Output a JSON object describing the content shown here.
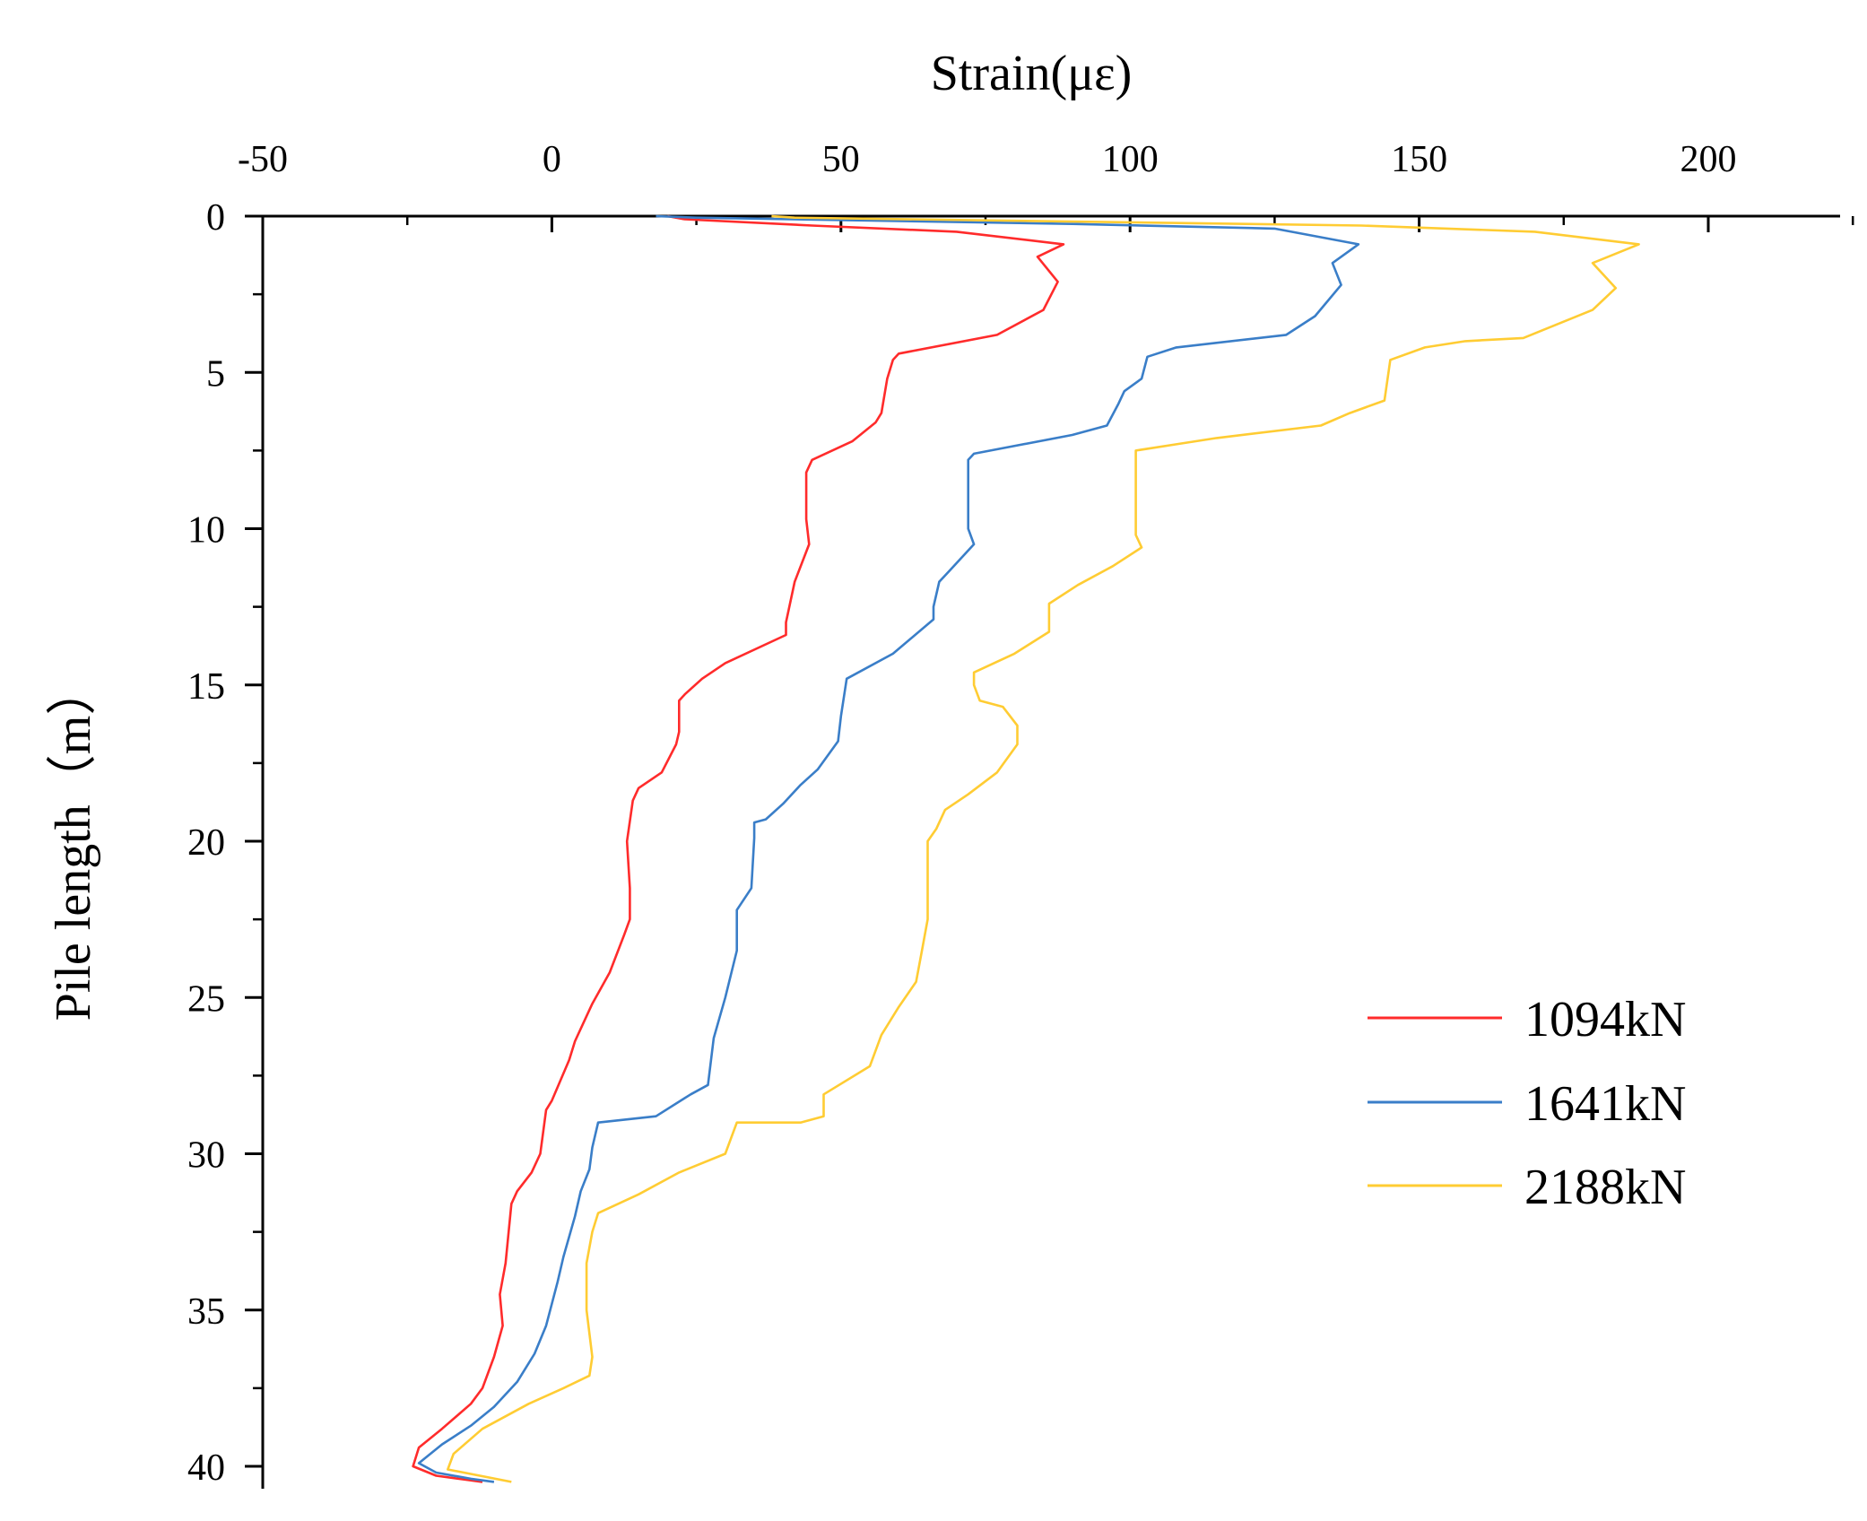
{
  "chart_data": {
    "type": "line",
    "title": "",
    "xlabel": "Strain(με)",
    "ylabel": "Pile length（m）",
    "xlim": [
      -50,
      225
    ],
    "ylim": [
      0,
      40.5
    ],
    "x_ticks": [
      -50,
      0,
      50,
      100,
      150,
      200
    ],
    "y_ticks": [
      0,
      5,
      10,
      15,
      20,
      25,
      30,
      35,
      40
    ],
    "x_axis_position": "top",
    "y_axis_inverted": true,
    "legend": "bottom-right",
    "series": [
      {
        "name": "1094kN",
        "color": "#ff2b2b",
        "points": [
          [
            20,
            0
          ],
          [
            23,
            0.1
          ],
          [
            45,
            0.3
          ],
          [
            70,
            0.5
          ],
          [
            88.5,
            0.9
          ],
          [
            84,
            1.3
          ],
          [
            87.5,
            2.1
          ],
          [
            85,
            3.0
          ],
          [
            77,
            3.8
          ],
          [
            60,
            4.4
          ],
          [
            59,
            4.6
          ],
          [
            58,
            5.2
          ],
          [
            57,
            6.3
          ],
          [
            56,
            6.6
          ],
          [
            52,
            7.2
          ],
          [
            45,
            7.8
          ],
          [
            44,
            8.2
          ],
          [
            44,
            9.7
          ],
          [
            44.5,
            10.5
          ],
          [
            42,
            11.7
          ],
          [
            40.5,
            13.0
          ],
          [
            40.5,
            13.4
          ],
          [
            30,
            14.3
          ],
          [
            26,
            14.8
          ],
          [
            23,
            15.3
          ],
          [
            22,
            15.5
          ],
          [
            22,
            16.5
          ],
          [
            21.5,
            16.9
          ],
          [
            19,
            17.8
          ],
          [
            15,
            18.3
          ],
          [
            14,
            18.7
          ],
          [
            13,
            20.0
          ],
          [
            13.5,
            21.5
          ],
          [
            13.5,
            22.5
          ],
          [
            12.5,
            23.0
          ],
          [
            10,
            24.2
          ],
          [
            7,
            25.2
          ],
          [
            4,
            26.4
          ],
          [
            3,
            27.0
          ],
          [
            0,
            28.3
          ],
          [
            -1,
            28.6
          ],
          [
            -2,
            30.0
          ],
          [
            -3.5,
            30.6
          ],
          [
            -6,
            31.2
          ],
          [
            -7,
            31.6
          ],
          [
            -8,
            33.5
          ],
          [
            -9,
            34.5
          ],
          [
            -8.5,
            35.5
          ],
          [
            -10,
            36.5
          ],
          [
            -12,
            37.5
          ],
          [
            -14,
            38.0
          ],
          [
            -19,
            38.8
          ],
          [
            -23,
            39.4
          ],
          [
            -24,
            40.0
          ],
          [
            -20,
            40.3
          ],
          [
            -12,
            40.5
          ]
        ]
      },
      {
        "name": "1641kN",
        "color": "#3a7ec8",
        "points": [
          [
            18,
            0
          ],
          [
            25,
            0.05
          ],
          [
            90,
            0.25
          ],
          [
            125,
            0.4
          ],
          [
            139.5,
            0.9
          ],
          [
            135,
            1.5
          ],
          [
            136.5,
            2.2
          ],
          [
            132,
            3.2
          ],
          [
            127,
            3.8
          ],
          [
            108,
            4.2
          ],
          [
            103,
            4.5
          ],
          [
            102,
            5.2
          ],
          [
            99,
            5.6
          ],
          [
            98,
            6.0
          ],
          [
            96,
            6.7
          ],
          [
            90,
            7.0
          ],
          [
            73,
            7.6
          ],
          [
            72,
            7.8
          ],
          [
            72,
            10.0
          ],
          [
            73,
            10.5
          ],
          [
            68,
            11.5
          ],
          [
            67,
            11.7
          ],
          [
            66,
            12.5
          ],
          [
            66,
            12.9
          ],
          [
            59,
            14.0
          ],
          [
            51,
            14.8
          ],
          [
            50,
            16.0
          ],
          [
            49.5,
            16.8
          ],
          [
            46,
            17.7
          ],
          [
            43,
            18.2
          ],
          [
            40,
            18.8
          ],
          [
            37,
            19.3
          ],
          [
            35,
            19.4
          ],
          [
            35,
            19.9
          ],
          [
            34.5,
            21.5
          ],
          [
            32,
            22.2
          ],
          [
            32,
            23.5
          ],
          [
            30,
            25.0
          ],
          [
            28,
            26.3
          ],
          [
            27,
            27.8
          ],
          [
            24,
            28.1
          ],
          [
            18,
            28.8
          ],
          [
            8,
            29.0
          ],
          [
            7,
            29.8
          ],
          [
            6.5,
            30.5
          ],
          [
            5,
            31.2
          ],
          [
            4,
            32.0
          ],
          [
            2,
            33.3
          ],
          [
            1,
            34.1
          ],
          [
            0,
            34.8
          ],
          [
            -1,
            35.5
          ],
          [
            -3,
            36.4
          ],
          [
            -6,
            37.3
          ],
          [
            -10,
            38.1
          ],
          [
            -14,
            38.7
          ],
          [
            -19,
            39.3
          ],
          [
            -23,
            39.9
          ],
          [
            -20,
            40.2
          ],
          [
            -14,
            40.4
          ],
          [
            -10,
            40.5
          ]
        ]
      },
      {
        "name": "2188kN",
        "color": "#ffcc33",
        "points": [
          [
            38,
            0
          ],
          [
            42,
            0.05
          ],
          [
            140,
            0.3
          ],
          [
            170,
            0.5
          ],
          [
            188,
            0.9
          ],
          [
            180,
            1.5
          ],
          [
            184,
            2.3
          ],
          [
            180,
            3.0
          ],
          [
            168,
            3.9
          ],
          [
            158,
            4.0
          ],
          [
            151,
            4.2
          ],
          [
            145,
            4.6
          ],
          [
            144,
            5.9
          ],
          [
            138,
            6.3
          ],
          [
            133,
            6.7
          ],
          [
            115,
            7.1
          ],
          [
            108,
            7.3
          ],
          [
            101,
            7.5
          ],
          [
            101,
            10.2
          ],
          [
            102,
            10.6
          ],
          [
            97,
            11.2
          ],
          [
            91,
            11.8
          ],
          [
            86,
            12.4
          ],
          [
            86,
            13.3
          ],
          [
            80,
            14.0
          ],
          [
            73,
            14.6
          ],
          [
            73,
            15.0
          ],
          [
            74,
            15.5
          ],
          [
            78,
            15.7
          ],
          [
            80.5,
            16.3
          ],
          [
            80.5,
            16.9
          ],
          [
            77,
            17.8
          ],
          [
            72,
            18.5
          ],
          [
            68,
            19.0
          ],
          [
            66.5,
            19.6
          ],
          [
            65,
            20.0
          ],
          [
            65,
            22.5
          ],
          [
            64,
            23.5
          ],
          [
            63,
            24.5
          ],
          [
            60,
            25.3
          ],
          [
            57,
            26.2
          ],
          [
            55,
            27.2
          ],
          [
            47,
            28.1
          ],
          [
            47,
            28.8
          ],
          [
            43,
            29.0
          ],
          [
            32,
            29.0
          ],
          [
            30,
            30.0
          ],
          [
            22,
            30.6
          ],
          [
            15,
            31.3
          ],
          [
            8,
            31.9
          ],
          [
            7,
            32.5
          ],
          [
            6,
            33.5
          ],
          [
            6,
            35.0
          ],
          [
            7,
            36.5
          ],
          [
            6.5,
            37.1
          ],
          [
            2,
            37.5
          ],
          [
            -4,
            38.0
          ],
          [
            -12,
            38.8
          ],
          [
            -17,
            39.6
          ],
          [
            -18,
            40.1
          ],
          [
            -7,
            40.5
          ]
        ]
      }
    ]
  }
}
